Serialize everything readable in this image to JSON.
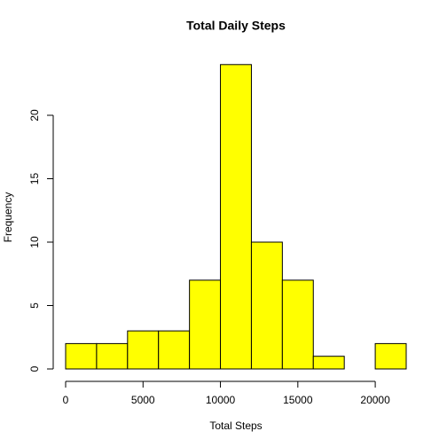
{
  "chart_data": {
    "type": "histogram",
    "title": "Total Daily Steps",
    "x_label": "Total Steps",
    "y_label": "Frequency",
    "bins": [
      0,
      2000,
      4000,
      6000,
      8000,
      10000,
      12000,
      14000,
      16000,
      18000,
      20000,
      22000
    ],
    "values": [
      2,
      2,
      3,
      3,
      7,
      24,
      10,
      7,
      1,
      0,
      2
    ],
    "color": "#ffff00",
    "xlim": [
      0,
      22000
    ],
    "xticks": [
      0,
      5000,
      10000,
      15000,
      20000
    ],
    "ylim": [
      0,
      25
    ],
    "yticks": [
      0,
      5,
      10,
      15,
      20
    ]
  }
}
